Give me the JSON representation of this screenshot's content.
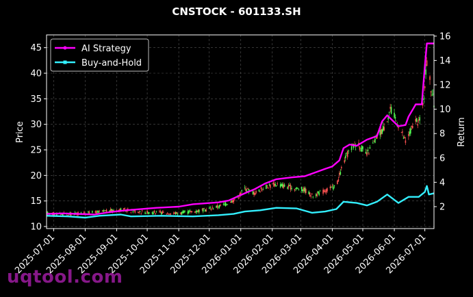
{
  "chart_data": {
    "type": "line",
    "title": "CNSTOCK - 601133.SH",
    "xlabel": "",
    "ylabel": "Price",
    "y2label": "Return",
    "x_ticks": [
      "2025-07-01",
      "2025-08-01",
      "2025-09-01",
      "2025-10-01",
      "2025-11-01",
      "2025-12-01",
      "2026-01-01",
      "2026-02-01",
      "2026-03-01",
      "2026-04-01",
      "2026-05-01",
      "2026-06-01",
      "2026-07-01"
    ],
    "xlim": [
      "2025-06-24",
      "2026-07-10"
    ],
    "ylim": [
      9.6,
      47.5
    ],
    "y_ticks": [
      10,
      15,
      20,
      25,
      30,
      35,
      40,
      45
    ],
    "y2lim": [
      0.2,
      16.1
    ],
    "y2_ticks": [
      2,
      4,
      6,
      8,
      10,
      12,
      14,
      16
    ],
    "grid": true,
    "legend_position": "top-left",
    "colors": {
      "up": "#ff5252",
      "down": "#52ff52",
      "strategy": "#ff00ff",
      "buyhold": "#33f0ff",
      "background": "#000000",
      "text": "#ffffff"
    },
    "price_path": [
      [
        "2025-06-24",
        12.6
      ],
      [
        "2025-07-15",
        12.4
      ],
      [
        "2025-08-10",
        12.7
      ],
      [
        "2025-09-05",
        13.3
      ],
      [
        "2025-10-01",
        12.8
      ],
      [
        "2025-11-01",
        12.6
      ],
      [
        "2025-11-25",
        13.2
      ],
      [
        "2025-12-15",
        14.2
      ],
      [
        "2025-12-28",
        15.5
      ],
      [
        "2026-01-05",
        17.5
      ],
      [
        "2026-01-15",
        16.5
      ],
      [
        "2026-01-25",
        17.8
      ],
      [
        "2026-02-05",
        18.3
      ],
      [
        "2026-02-20",
        17.6
      ],
      [
        "2026-03-05",
        17.2
      ],
      [
        "2026-03-12",
        16.0
      ],
      [
        "2026-03-25",
        17.0
      ],
      [
        "2026-04-05",
        18.0
      ],
      [
        "2026-04-12",
        22.5
      ],
      [
        "2026-04-18",
        25.0
      ],
      [
        "2026-04-25",
        26.5
      ],
      [
        "2026-05-05",
        24.0
      ],
      [
        "2026-05-15",
        27.5
      ],
      [
        "2026-05-22",
        29.5
      ],
      [
        "2026-05-28",
        33.0
      ],
      [
        "2026-06-05",
        30.0
      ],
      [
        "2026-06-12",
        26.5
      ],
      [
        "2026-06-20",
        30.0
      ],
      [
        "2026-06-28",
        31.0
      ],
      [
        "2026-07-01",
        38.0
      ],
      [
        "2026-07-04",
        44.0
      ],
      [
        "2026-07-07",
        37.0
      ],
      [
        "2026-07-10",
        34.0
      ]
    ],
    "series": [
      {
        "name": "AI Strategy",
        "axis": "right",
        "points": [
          [
            "2025-06-24",
            1.4
          ],
          [
            "2025-07-10",
            1.45
          ],
          [
            "2025-08-10",
            1.35
          ],
          [
            "2025-08-25",
            1.55
          ],
          [
            "2025-09-10",
            1.7
          ],
          [
            "2025-10-10",
            1.9
          ],
          [
            "2025-11-01",
            2.0
          ],
          [
            "2025-11-15",
            2.2
          ],
          [
            "2025-12-10",
            2.35
          ],
          [
            "2025-12-20",
            2.5
          ],
          [
            "2025-12-28",
            2.8
          ],
          [
            "2026-01-05",
            3.1
          ],
          [
            "2026-01-15",
            3.45
          ],
          [
            "2026-01-25",
            3.9
          ],
          [
            "2026-02-05",
            4.25
          ],
          [
            "2026-02-20",
            4.4
          ],
          [
            "2026-03-05",
            4.5
          ],
          [
            "2026-03-15",
            4.8
          ],
          [
            "2026-03-25",
            5.1
          ],
          [
            "2026-04-01",
            5.3
          ],
          [
            "2026-04-08",
            5.8
          ],
          [
            "2026-04-12",
            6.8
          ],
          [
            "2026-04-18",
            7.1
          ],
          [
            "2026-04-25",
            7.0
          ],
          [
            "2026-05-05",
            7.5
          ],
          [
            "2026-05-15",
            7.8
          ],
          [
            "2026-05-20",
            9.0
          ],
          [
            "2026-05-25",
            9.5
          ],
          [
            "2026-06-05",
            8.6
          ],
          [
            "2026-06-12",
            8.7
          ],
          [
            "2026-06-15",
            9.4
          ],
          [
            "2026-06-20",
            10.1
          ],
          [
            "2026-06-22",
            10.4
          ],
          [
            "2026-06-28",
            10.4
          ],
          [
            "2026-07-01",
            13.5
          ],
          [
            "2026-07-03",
            15.4
          ],
          [
            "2026-07-10",
            15.4
          ]
        ]
      },
      {
        "name": "Buy-and-Hold",
        "axis": "right",
        "points": [
          [
            "2025-06-24",
            1.25
          ],
          [
            "2025-07-15",
            1.2
          ],
          [
            "2025-08-01",
            1.1
          ],
          [
            "2025-08-15",
            1.25
          ],
          [
            "2025-09-05",
            1.35
          ],
          [
            "2025-09-15",
            1.2
          ],
          [
            "2025-10-15",
            1.25
          ],
          [
            "2025-11-15",
            1.2
          ],
          [
            "2025-12-10",
            1.3
          ],
          [
            "2025-12-25",
            1.4
          ],
          [
            "2026-01-05",
            1.6
          ],
          [
            "2026-01-20",
            1.7
          ],
          [
            "2026-02-05",
            1.9
          ],
          [
            "2026-02-25",
            1.85
          ],
          [
            "2026-03-12",
            1.5
          ],
          [
            "2026-03-25",
            1.6
          ],
          [
            "2026-04-05",
            1.8
          ],
          [
            "2026-04-12",
            2.4
          ],
          [
            "2026-04-25",
            2.3
          ],
          [
            "2026-05-05",
            2.1
          ],
          [
            "2026-05-15",
            2.4
          ],
          [
            "2026-05-25",
            3.0
          ],
          [
            "2026-06-05",
            2.3
          ],
          [
            "2026-06-15",
            2.8
          ],
          [
            "2026-06-25",
            2.8
          ],
          [
            "2026-07-01",
            3.2
          ],
          [
            "2026-07-03",
            3.7
          ],
          [
            "2026-07-05",
            3.0
          ],
          [
            "2026-07-10",
            3.1
          ]
        ]
      }
    ]
  },
  "watermark": "uqtool.com"
}
